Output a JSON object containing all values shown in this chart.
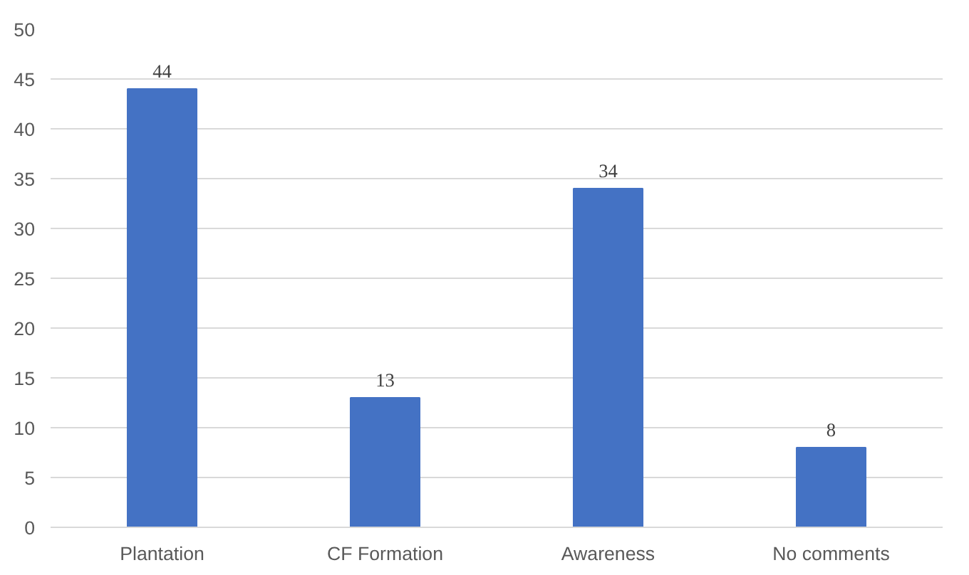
{
  "chart_data": {
    "type": "bar",
    "categories": [
      "Plantation",
      "CF Formation",
      "Awareness",
      "No comments"
    ],
    "values": [
      44,
      13,
      34,
      8
    ],
    "color": "#4472c4",
    "ylim": [
      0,
      50
    ],
    "yticks": [
      0,
      5,
      10,
      15,
      20,
      25,
      30,
      35,
      40,
      45,
      50
    ],
    "grid": "y",
    "data_labels": true
  }
}
